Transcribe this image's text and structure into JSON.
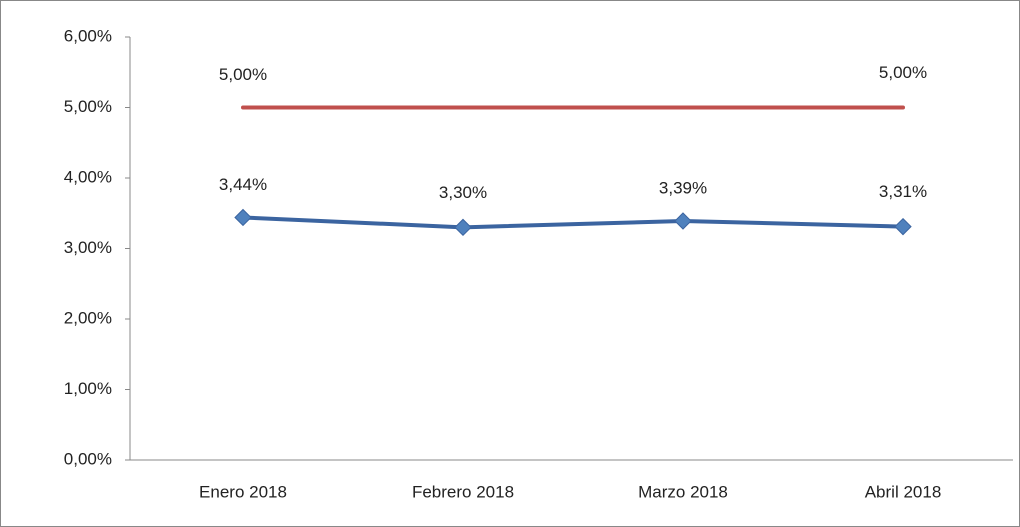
{
  "chart_data": {
    "type": "line",
    "categories": [
      "Enero 2018",
      "Febrero 2018",
      "Marzo 2018",
      "Abril 2018"
    ],
    "series": [
      {
        "color": "#c0504d",
        "marker": "none",
        "values": [
          5,
          5,
          5,
          5
        ],
        "value_labels": [
          "5,00%",
          null,
          null,
          "5,00%"
        ]
      },
      {
        "color": "#4f81bd",
        "marker": "diamond",
        "values": [
          3.44,
          3.3,
          3.39,
          3.31
        ],
        "value_labels": [
          "3,44%",
          "3,30%",
          "3,39%",
          "3,31%"
        ]
      }
    ],
    "ylim": [
      0,
      6
    ],
    "yticks": [
      {
        "value": 0,
        "label": "0,00%"
      },
      {
        "value": 1,
        "label": "1,00%"
      },
      {
        "value": 2,
        "label": "2,00%"
      },
      {
        "value": 3,
        "label": "3,00%"
      },
      {
        "value": 4,
        "label": "4,00%"
      },
      {
        "value": 5,
        "label": "5,00%"
      },
      {
        "value": 6,
        "label": "6,00%"
      }
    ],
    "grid": false
  }
}
